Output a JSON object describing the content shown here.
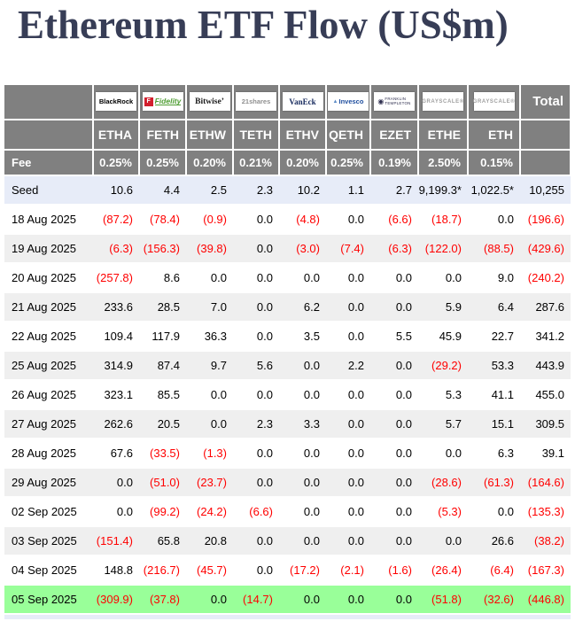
{
  "title": "Ethereum ETF Flow (US$m)",
  "colors": {
    "header_gray": "#808080",
    "seed_row_bg": "#e7ecf8",
    "alt_row_bg": "#efefef",
    "highlight_green": "#99ff99",
    "negative_red": "#ff0000",
    "title_navy": "#373d56"
  },
  "issuers": [
    {
      "id": "blackrock",
      "label": "BlackRock"
    },
    {
      "id": "fidelity",
      "label": "Fidelity"
    },
    {
      "id": "bitwise",
      "label": "Bitwise"
    },
    {
      "id": "21shares",
      "label": "21shares"
    },
    {
      "id": "vaneck",
      "label": "VanEck"
    },
    {
      "id": "invesco",
      "label": "Invesco"
    },
    {
      "id": "franklin",
      "label": "FRANKLIN TEMPLETON"
    },
    {
      "id": "grayscale-ethe",
      "label": "GRAYSCALE"
    },
    {
      "id": "grayscale-eth",
      "label": "GRAYSCALE"
    }
  ],
  "chart_data": {
    "type": "table",
    "title": "Ethereum ETF Flow (US$m)",
    "total_label": "Total",
    "tickers": [
      "ETHA",
      "FETH",
      "ETHW",
      "TETH",
      "ETHV",
      "QETH",
      "EZET",
      "ETHE",
      "ETH"
    ],
    "fee_row": {
      "label": "Fee",
      "values": [
        "0.25%",
        "0.25%",
        "0.20%",
        "0.21%",
        "0.20%",
        "0.25%",
        "0.19%",
        "2.50%",
        "0.15%"
      ]
    },
    "seed_row": {
      "label": "Seed",
      "values": [
        "10.6",
        "4.4",
        "2.5",
        "2.3",
        "10.2",
        "1.1",
        "2.7",
        "9,199.3*",
        "1,022.5*",
        "10,255"
      ]
    },
    "rows": [
      {
        "date": "18 Aug 2025",
        "values": [
          "(87.2)",
          "(78.4)",
          "(0.9)",
          "0.0",
          "(4.8)",
          "0.0",
          "(6.6)",
          "(18.7)",
          "0.0",
          "(196.6)"
        ],
        "highlight": false
      },
      {
        "date": "19 Aug 2025",
        "values": [
          "(6.3)",
          "(156.3)",
          "(39.8)",
          "0.0",
          "(3.0)",
          "(7.4)",
          "(6.3)",
          "(122.0)",
          "(88.5)",
          "(429.6)"
        ],
        "highlight": false
      },
      {
        "date": "20 Aug 2025",
        "values": [
          "(257.8)",
          "8.6",
          "0.0",
          "0.0",
          "0.0",
          "0.0",
          "0.0",
          "0.0",
          "9.0",
          "(240.2)"
        ],
        "highlight": false
      },
      {
        "date": "21 Aug 2025",
        "values": [
          "233.6",
          "28.5",
          "7.0",
          "0.0",
          "6.2",
          "0.0",
          "0.0",
          "5.9",
          "6.4",
          "287.6"
        ],
        "highlight": false
      },
      {
        "date": "22 Aug 2025",
        "values": [
          "109.4",
          "117.9",
          "36.3",
          "0.0",
          "3.5",
          "0.0",
          "5.5",
          "45.9",
          "22.7",
          "341.2"
        ],
        "highlight": false
      },
      {
        "date": "25 Aug 2025",
        "values": [
          "314.9",
          "87.4",
          "9.7",
          "5.6",
          "0.0",
          "2.2",
          "0.0",
          "(29.2)",
          "53.3",
          "443.9"
        ],
        "highlight": false
      },
      {
        "date": "26 Aug 2025",
        "values": [
          "323.1",
          "85.5",
          "0.0",
          "0.0",
          "0.0",
          "0.0",
          "0.0",
          "5.3",
          "41.1",
          "455.0"
        ],
        "highlight": false
      },
      {
        "date": "27 Aug 2025",
        "values": [
          "262.6",
          "20.5",
          "0.0",
          "2.3",
          "3.3",
          "0.0",
          "0.0",
          "5.7",
          "15.1",
          "309.5"
        ],
        "highlight": false
      },
      {
        "date": "28 Aug 2025",
        "values": [
          "67.6",
          "(33.5)",
          "(1.3)",
          "0.0",
          "0.0",
          "0.0",
          "0.0",
          "0.0",
          "6.3",
          "39.1"
        ],
        "highlight": false
      },
      {
        "date": "29 Aug 2025",
        "values": [
          "0.0",
          "(51.0)",
          "(23.7)",
          "0.0",
          "0.0",
          "0.0",
          "0.0",
          "(28.6)",
          "(61.3)",
          "(164.6)"
        ],
        "highlight": false
      },
      {
        "date": "02 Sep 2025",
        "values": [
          "0.0",
          "(99.2)",
          "(24.2)",
          "(6.6)",
          "0.0",
          "0.0",
          "0.0",
          "(5.3)",
          "0.0",
          "(135.3)"
        ],
        "highlight": false
      },
      {
        "date": "03 Sep 2025",
        "values": [
          "(151.4)",
          "65.8",
          "20.8",
          "0.0",
          "0.0",
          "0.0",
          "0.0",
          "0.0",
          "26.6",
          "(38.2)"
        ],
        "highlight": false
      },
      {
        "date": "04 Sep 2025",
        "values": [
          "148.8",
          "(216.7)",
          "(45.7)",
          "0.0",
          "(17.2)",
          "(2.1)",
          "(1.6)",
          "(26.4)",
          "(6.4)",
          "(167.3)"
        ],
        "highlight": false
      },
      {
        "date": "05 Sep 2025",
        "values": [
          "(309.9)",
          "(37.8)",
          "0.0",
          "(14.7)",
          "0.0",
          "0.0",
          "0.0",
          "(51.8)",
          "(32.6)",
          "(446.8)"
        ],
        "highlight": true
      }
    ]
  }
}
